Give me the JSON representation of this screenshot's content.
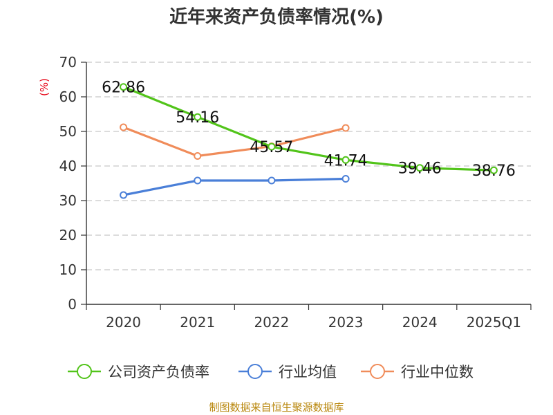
{
  "chart_data": {
    "type": "line",
    "title": "近年来资产负债率情况(%)",
    "ylabel": "(%)",
    "xlabel": "",
    "categories": [
      "2020",
      "2021",
      "2022",
      "2023",
      "2024",
      "2025Q1"
    ],
    "ylim": [
      0,
      70
    ],
    "yticks": [
      0,
      10,
      20,
      30,
      40,
      50,
      60,
      70
    ],
    "grid": true,
    "legend_position": "bottom",
    "series": [
      {
        "name": "公司资产负债率",
        "color": "#52c41a",
        "values": [
          62.86,
          54.16,
          45.57,
          41.74,
          39.46,
          38.76
        ],
        "data_labels": [
          "62.86",
          "54.16",
          "45.57",
          "41.74",
          "39.46",
          "38.76"
        ]
      },
      {
        "name": "行业均值",
        "color": "#4a7fd8",
        "values": [
          31.6,
          35.8,
          35.8,
          36.3,
          null,
          null
        ],
        "data_labels": []
      },
      {
        "name": "行业中位数",
        "color": "#f08c5a",
        "values": [
          51.2,
          42.9,
          45.7,
          51.0,
          null,
          null
        ],
        "data_labels": []
      }
    ]
  },
  "source_text": "制图数据来自恒生聚源数据库"
}
